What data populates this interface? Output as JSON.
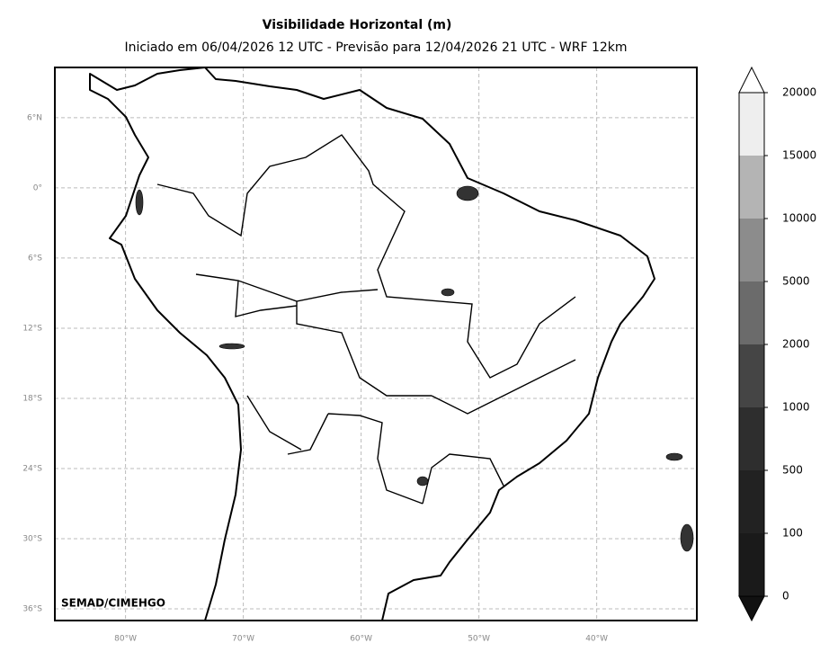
{
  "title": "Visibilidade Horizontal (m)",
  "subtitle": "Iniciado em 06/04/2026 12 UTC - Previsão para 12/04/2026 21 UTC - WRF 12km",
  "credit": "SEMAD/CIMEHGO",
  "map": {
    "lon_range": [
      -86,
      -31.5
    ],
    "lat_range": [
      -37,
      10.3
    ],
    "lon_ticks": [
      {
        "value": -80,
        "label": "80°W"
      },
      {
        "value": -70,
        "label": "70°W"
      },
      {
        "value": -60,
        "label": "60°W"
      },
      {
        "value": -50,
        "label": "50°W"
      },
      {
        "value": -40,
        "label": "40°W"
      }
    ],
    "lat_ticks": [
      {
        "value": 6,
        "label": "6°N"
      },
      {
        "value": 0,
        "label": "0°"
      },
      {
        "value": -6,
        "label": "6°S"
      },
      {
        "value": -12,
        "label": "12°S"
      },
      {
        "value": -18,
        "label": "18°S"
      },
      {
        "value": -24,
        "label": "24°S"
      },
      {
        "value": -30,
        "label": "30°S"
      },
      {
        "value": -36,
        "label": "36°S"
      }
    ]
  },
  "colorbar": {
    "levels": [
      0,
      100,
      500,
      1000,
      2000,
      5000,
      10000,
      15000,
      20000
    ],
    "colors": [
      "#1a1a1a",
      "#222222",
      "#2e2e2e",
      "#454545",
      "#6b6b6b",
      "#8c8c8c",
      "#b4b4b4",
      "#eeeeee"
    ],
    "under_color": "#111111",
    "over_color": "#ffffff"
  }
}
